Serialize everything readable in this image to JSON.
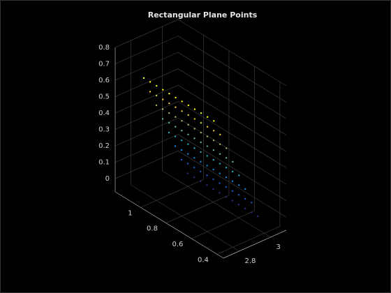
{
  "chart_data": {
    "type": "scatter3",
    "title": "Rectangular Plane Points",
    "colormap": "parula",
    "grid": true,
    "xlim": [
      0.35,
      1.2
    ],
    "ylim": [
      2.7,
      3.1
    ],
    "zlim": [
      -0.08,
      0.8
    ],
    "xticks": [
      0.4,
      0.6,
      0.8,
      1
    ],
    "yticks": [
      2.8,
      3
    ],
    "zticks": [
      0,
      0.1,
      0.2,
      0.3,
      0.4,
      0.5,
      0.6,
      0.7,
      0.8
    ],
    "x": [
      1,
      0.95,
      0.9,
      0.85,
      0.8,
      0.75,
      0.7,
      0.65,
      0.6,
      0.55,
      0.5,
      0.45,
      1,
      0.95,
      0.9,
      0.85,
      0.8,
      0.75,
      0.7,
      0.65,
      0.6,
      0.55,
      0.5,
      0.45,
      1,
      0.95,
      0.9,
      0.85,
      0.8,
      0.75,
      0.7,
      0.65,
      0.6,
      0.55,
      0.5,
      0.45,
      1,
      0.95,
      0.9,
      0.85,
      0.8,
      0.75,
      0.7,
      0.65,
      0.6,
      0.55,
      0.5,
      0.45,
      1,
      0.95,
      0.9,
      0.85,
      0.8,
      0.75,
      0.7,
      0.65,
      0.6,
      0.55,
      0.5,
      0.45,
      1,
      0.95,
      0.9,
      0.85,
      0.8,
      0.75,
      0.7,
      0.65,
      0.6,
      0.55,
      0.5,
      0.45,
      1,
      0.95,
      0.9,
      0.85,
      0.8,
      0.75,
      0.7,
      0.65,
      0.6,
      0.55,
      0.5,
      0.45,
      1,
      0.95,
      0.9,
      0.85,
      0.8,
      0.75,
      0.7,
      0.65,
      0.6,
      0.55,
      0.5,
      0.45
    ],
    "y": [
      2.72,
      2.72,
      2.72,
      2.72,
      2.72,
      2.72,
      2.72,
      2.72,
      2.72,
      2.72,
      2.72,
      2.72,
      2.76,
      2.76,
      2.76,
      2.76,
      2.76,
      2.76,
      2.76,
      2.76,
      2.76,
      2.76,
      2.76,
      2.76,
      2.8,
      2.8,
      2.8,
      2.8,
      2.8,
      2.8,
      2.8,
      2.8,
      2.8,
      2.8,
      2.8,
      2.8,
      2.84,
      2.84,
      2.84,
      2.84,
      2.84,
      2.84,
      2.84,
      2.84,
      2.84,
      2.84,
      2.84,
      2.84,
      2.88,
      2.88,
      2.88,
      2.88,
      2.88,
      2.88,
      2.88,
      2.88,
      2.88,
      2.88,
      2.88,
      2.88,
      2.92,
      2.92,
      2.92,
      2.92,
      2.92,
      2.92,
      2.92,
      2.92,
      2.92,
      2.92,
      2.92,
      2.92,
      2.96,
      2.96,
      2.96,
      2.96,
      2.96,
      2.96,
      2.96,
      2.96,
      2.96,
      2.96,
      2.96,
      2.96,
      3,
      3,
      3,
      3,
      3,
      3,
      3,
      3,
      3,
      3,
      3,
      3
    ],
    "z": [
      0.7,
      0.7,
      0.7,
      0.7,
      0.7,
      0.7,
      0.7,
      0.7,
      0.7,
      0.7,
      0.7,
      0.7,
      0.6,
      0.6,
      0.6,
      0.6,
      0.6,
      0.6,
      0.6,
      0.6,
      0.6,
      0.6,
      0.6,
      0.6,
      0.5,
      0.5,
      0.5,
      0.5,
      0.5,
      0.5,
      0.5,
      0.5,
      0.5,
      0.5,
      0.5,
      0.5,
      0.4,
      0.4,
      0.4,
      0.4,
      0.4,
      0.4,
      0.4,
      0.4,
      0.4,
      0.4,
      0.4,
      0.4,
      0.3,
      0.3,
      0.3,
      0.3,
      0.3,
      0.3,
      0.3,
      0.3,
      0.3,
      0.3,
      0.3,
      0.3,
      0.2,
      0.2,
      0.2,
      0.2,
      0.2,
      0.2,
      0.2,
      0.2,
      0.2,
      0.2,
      0.2,
      0.2,
      0.1,
      0.1,
      0.1,
      0.1,
      0.1,
      0.1,
      0.1,
      0.1,
      0.1,
      0.1,
      0.1,
      0.1,
      0,
      0,
      0,
      0,
      0,
      0,
      0,
      0,
      0,
      0,
      0,
      0
    ]
  }
}
